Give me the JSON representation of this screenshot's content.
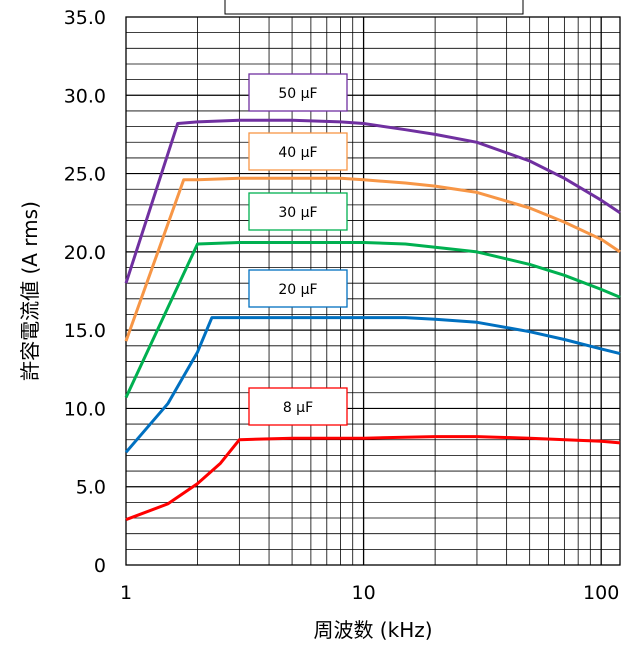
{
  "chart_data": {
    "type": "line",
    "title": "",
    "xlabel": "周波数 (kHz)",
    "ylabel": "許容電流値 (A rms)",
    "xscale": "log",
    "xlim": [
      1,
      120
    ],
    "ylim": [
      0,
      35
    ],
    "grid": true,
    "x_tick_labels": [
      "1",
      "10",
      "100"
    ],
    "y_tick_labels": [
      "0",
      "5.0",
      "10.0",
      "15.0",
      "20.0",
      "25.0",
      "30.0",
      "35.0"
    ],
    "series": [
      {
        "name": "50 µF",
        "color": "#7030a0",
        "points": [
          [
            1,
            18.0
          ],
          [
            1.65,
            28.2
          ],
          [
            2,
            28.3
          ],
          [
            3,
            28.4
          ],
          [
            5,
            28.4
          ],
          [
            8,
            28.3
          ],
          [
            10,
            28.2
          ],
          [
            15,
            27.8
          ],
          [
            20,
            27.5
          ],
          [
            30,
            27.0
          ],
          [
            50,
            25.8
          ],
          [
            70,
            24.7
          ],
          [
            100,
            23.3
          ],
          [
            120,
            22.5
          ]
        ]
      },
      {
        "name": "40 µF",
        "color": "#f79646",
        "points": [
          [
            1,
            14.3
          ],
          [
            1.75,
            24.6
          ],
          [
            2,
            24.6
          ],
          [
            3,
            24.7
          ],
          [
            5,
            24.7
          ],
          [
            8,
            24.7
          ],
          [
            10,
            24.6
          ],
          [
            15,
            24.4
          ],
          [
            20,
            24.2
          ],
          [
            30,
            23.8
          ],
          [
            50,
            22.8
          ],
          [
            70,
            21.9
          ],
          [
            100,
            20.8
          ],
          [
            120,
            20.0
          ]
        ]
      },
      {
        "name": "30 µF",
        "color": "#00b050",
        "points": [
          [
            1,
            10.7
          ],
          [
            2.0,
            20.5
          ],
          [
            3,
            20.6
          ],
          [
            5,
            20.6
          ],
          [
            8,
            20.6
          ],
          [
            10,
            20.6
          ],
          [
            15,
            20.5
          ],
          [
            20,
            20.3
          ],
          [
            30,
            20.0
          ],
          [
            50,
            19.2
          ],
          [
            70,
            18.5
          ],
          [
            100,
            17.6
          ],
          [
            120,
            17.1
          ]
        ]
      },
      {
        "name": "20 µF",
        "color": "#0070c0",
        "points": [
          [
            1,
            7.2
          ],
          [
            1.5,
            10.3
          ],
          [
            2,
            13.6
          ],
          [
            2.3,
            15.8
          ],
          [
            3,
            15.8
          ],
          [
            5,
            15.8
          ],
          [
            10,
            15.8
          ],
          [
            15,
            15.8
          ],
          [
            20,
            15.7
          ],
          [
            30,
            15.5
          ],
          [
            50,
            14.9
          ],
          [
            70,
            14.4
          ],
          [
            100,
            13.8
          ],
          [
            120,
            13.5
          ]
        ]
      },
      {
        "name": "8 µF",
        "color": "#ff0000",
        "points": [
          [
            1,
            2.9
          ],
          [
            1.5,
            3.9
          ],
          [
            2,
            5.2
          ],
          [
            2.5,
            6.5
          ],
          [
            3,
            8.0
          ],
          [
            5,
            8.1
          ],
          [
            10,
            8.1
          ],
          [
            20,
            8.2
          ],
          [
            30,
            8.2
          ],
          [
            50,
            8.1
          ],
          [
            100,
            7.9
          ],
          [
            120,
            7.8
          ]
        ]
      }
    ]
  },
  "series_label_box_top": ""
}
